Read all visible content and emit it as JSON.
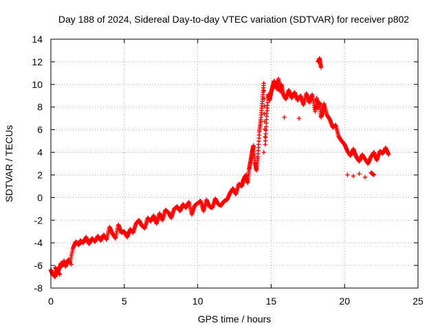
{
  "chart_data": {
    "type": "scatter",
    "title": "Day 188 of 2024, Sidereal Day-to-day VTEC variation (SDTVAR) for receiver p802",
    "xlabel": "GPS time / hours",
    "ylabel": "SDTVAR / TECUs",
    "xlim": [
      0,
      25
    ],
    "ylim": [
      -8,
      14
    ],
    "xticks": [
      0,
      5,
      10,
      15,
      20,
      25
    ],
    "yticks": [
      -8,
      -6,
      -4,
      -2,
      0,
      2,
      4,
      6,
      8,
      10,
      12,
      14
    ],
    "grid": true,
    "marker": "+",
    "marker_color": "#ff0000",
    "series": [
      {
        "name": "SDTVAR p802",
        "x": [
          0.0,
          0.1,
          0.2,
          0.3,
          0.4,
          0.5,
          0.6,
          0.7,
          0.8,
          0.9,
          1.0,
          1.1,
          1.2,
          1.3,
          1.5,
          1.7,
          1.9,
          2.0,
          2.2,
          2.4,
          2.6,
          2.8,
          3.0,
          3.2,
          3.4,
          3.6,
          3.8,
          4.0,
          4.2,
          4.4,
          4.6,
          4.8,
          5.0,
          5.2,
          5.4,
          5.6,
          5.8,
          6.0,
          6.2,
          6.4,
          6.6,
          6.8,
          7.0,
          7.2,
          7.4,
          7.6,
          7.8,
          8.0,
          8.2,
          8.4,
          8.6,
          8.8,
          9.0,
          9.2,
          9.4,
          9.6,
          9.8,
          10.0,
          10.2,
          10.4,
          10.6,
          10.8,
          11.0,
          11.2,
          11.4,
          11.6,
          11.8,
          12.0,
          12.2,
          12.4,
          12.6,
          12.8,
          13.0,
          13.1,
          13.2,
          13.3,
          13.4,
          13.5,
          13.6,
          13.7,
          13.8,
          13.9,
          14.0,
          14.1,
          14.2,
          14.3,
          14.4,
          14.5,
          14.6,
          14.7,
          14.8,
          14.9,
          15.0,
          15.1,
          15.2,
          15.3,
          15.4,
          15.5,
          15.6,
          15.7,
          15.8,
          16.0,
          16.2,
          16.4,
          16.6,
          16.8,
          17.0,
          17.2,
          17.4,
          17.6,
          17.8,
          18.0,
          18.1,
          18.2,
          18.3,
          18.4,
          18.5,
          18.6,
          18.8,
          19.0,
          19.2,
          19.4,
          19.6,
          19.8,
          20.0,
          20.2,
          20.4,
          20.6,
          20.8,
          21.0,
          21.2,
          21.4,
          21.6,
          21.8,
          22.0,
          22.2,
          22.4,
          22.6,
          22.8,
          23.0,
          20.2,
          20.6,
          21.0,
          21.4,
          21.8,
          22.0,
          18.2,
          18.3,
          18.4,
          15.9,
          16.9,
          14.5,
          13.7,
          0.3,
          0.6,
          1.4
        ],
        "y": [
          -6.4,
          -6.7,
          -6.9,
          -7.0,
          -6.3,
          -6.5,
          -6.2,
          -5.8,
          -6.0,
          -5.6,
          -6.1,
          -5.7,
          -5.5,
          -5.8,
          -4.5,
          -3.9,
          -4.2,
          -3.8,
          -4.0,
          -3.5,
          -4.1,
          -3.6,
          -3.9,
          -3.4,
          -3.8,
          -3.3,
          -3.7,
          -2.6,
          -3.2,
          -3.6,
          -2.4,
          -3.1,
          -3.0,
          -3.5,
          -2.8,
          -3.1,
          -2.3,
          -2.0,
          -2.5,
          -2.7,
          -1.8,
          -2.1,
          -1.6,
          -2.3,
          -1.4,
          -2.0,
          -1.1,
          -1.3,
          -1.8,
          -1.0,
          -0.8,
          -1.2,
          -0.6,
          -0.9,
          -0.4,
          -1.5,
          -0.7,
          -0.5,
          -0.3,
          -1.2,
          -0.2,
          -0.8,
          -0.9,
          -0.1,
          -0.6,
          -0.7,
          -0.3,
          -0.2,
          0.4,
          0.8,
          0.3,
          1.2,
          1.0,
          1.5,
          1.8,
          2.0,
          1.3,
          2.5,
          3.2,
          4.0,
          4.6,
          3.1,
          2.4,
          3.6,
          5.8,
          6.9,
          8.5,
          10.1,
          4.7,
          7.2,
          9.1,
          8.6,
          9.3,
          9.8,
          10.3,
          10.0,
          9.6,
          10.5,
          9.4,
          10.0,
          9.2,
          8.7,
          9.5,
          8.8,
          9.3,
          8.6,
          9.0,
          8.2,
          9.2,
          8.4,
          9.1,
          7.6,
          8.8,
          7.9,
          8.4,
          7.1,
          7.5,
          8.3,
          7.3,
          6.9,
          6.2,
          6.4,
          5.4,
          5.0,
          4.7,
          4.1,
          3.7,
          4.3,
          3.6,
          3.2,
          3.8,
          3.4,
          3.0,
          3.6,
          4.0,
          3.3,
          4.1,
          3.9,
          4.4,
          3.8,
          2.0,
          1.9,
          2.1,
          1.8,
          2.2,
          2.0,
          12.0,
          12.3,
          11.5,
          7.1,
          7.0,
          4.0,
          3.5,
          -6.2,
          -6.8,
          -5.9
        ]
      }
    ]
  }
}
